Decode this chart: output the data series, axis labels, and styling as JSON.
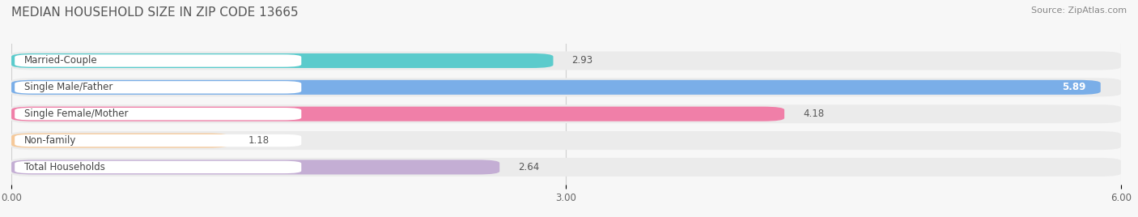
{
  "title": "MEDIAN HOUSEHOLD SIZE IN ZIP CODE 13665",
  "source": "Source: ZipAtlas.com",
  "categories": [
    "Married-Couple",
    "Single Male/Father",
    "Single Female/Mother",
    "Non-family",
    "Total Households"
  ],
  "values": [
    2.93,
    5.89,
    4.18,
    1.18,
    2.64
  ],
  "bar_colors": [
    "#5bcbcc",
    "#7aaee8",
    "#f07fa8",
    "#f5c99a",
    "#c4aed4"
  ],
  "bar_bg_color": "#ebebeb",
  "xlim": [
    0,
    6.0
  ],
  "xticks": [
    0.0,
    3.0,
    6.0
  ],
  "xtick_labels": [
    "0.00",
    "3.00",
    "6.00"
  ],
  "background_color": "#f7f7f7",
  "title_fontsize": 11,
  "label_fontsize": 8.5,
  "value_fontsize": 8.5,
  "source_fontsize": 8,
  "value_white_threshold": 4.5
}
